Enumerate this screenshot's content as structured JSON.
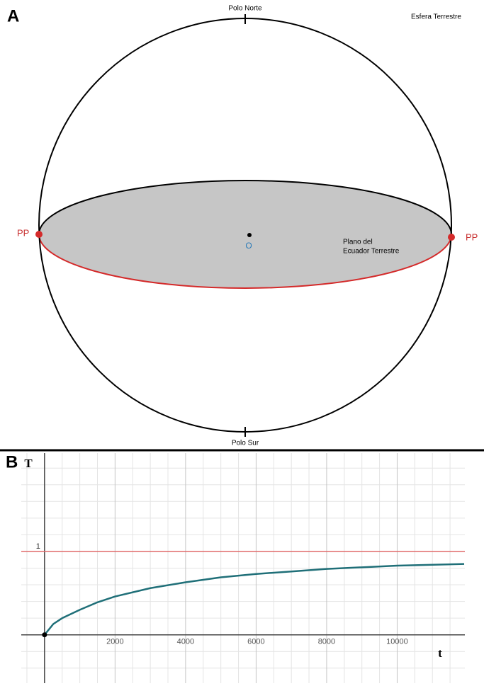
{
  "panel_a": {
    "label": "A",
    "title": "Esfera Terrestre",
    "north": "Polo Norte",
    "south": "Polo Sur",
    "left_point": "PP",
    "right_point": "PP",
    "center": "O",
    "plane": [
      "Plano del",
      "Ecuador Terrestre"
    ]
  },
  "panel_b": {
    "label": "B"
  },
  "chart_data": {
    "type": "line",
    "x_label": "t",
    "y_label": "T",
    "x": [
      0,
      250,
      500,
      1000,
      1500,
      2000,
      3000,
      4000,
      5000,
      6000,
      7000,
      8000,
      9000,
      10000,
      11000,
      11900
    ],
    "series": [
      {
        "color": "#1f6f78",
        "values": [
          0,
          0.13,
          0.2,
          0.3,
          0.39,
          0.46,
          0.56,
          0.63,
          0.69,
          0.73,
          0.76,
          0.79,
          0.81,
          0.83,
          0.84,
          0.85
        ]
      }
    ],
    "xlim": [
      -660,
      11920
    ],
    "ylim": [
      -0.58,
      2.18
    ],
    "xticks": [
      2000,
      4000,
      6000,
      8000,
      10000
    ],
    "yticks": [
      1
    ],
    "minor_xticks": [
      -500,
      500,
      1000,
      1500,
      2500,
      3000,
      3500,
      4500,
      5000,
      5500,
      6500,
      7000,
      7500,
      8500,
      9000,
      9500,
      10500,
      11000,
      11500
    ],
    "minor_yticks": [
      -0.4,
      -0.2,
      0.2,
      0.4,
      0.6,
      0.8,
      1.2,
      1.4,
      1.6,
      1.8,
      2.0
    ],
    "reference_line": {
      "value": 1,
      "color": "#e06a6a"
    },
    "grid": true
  }
}
